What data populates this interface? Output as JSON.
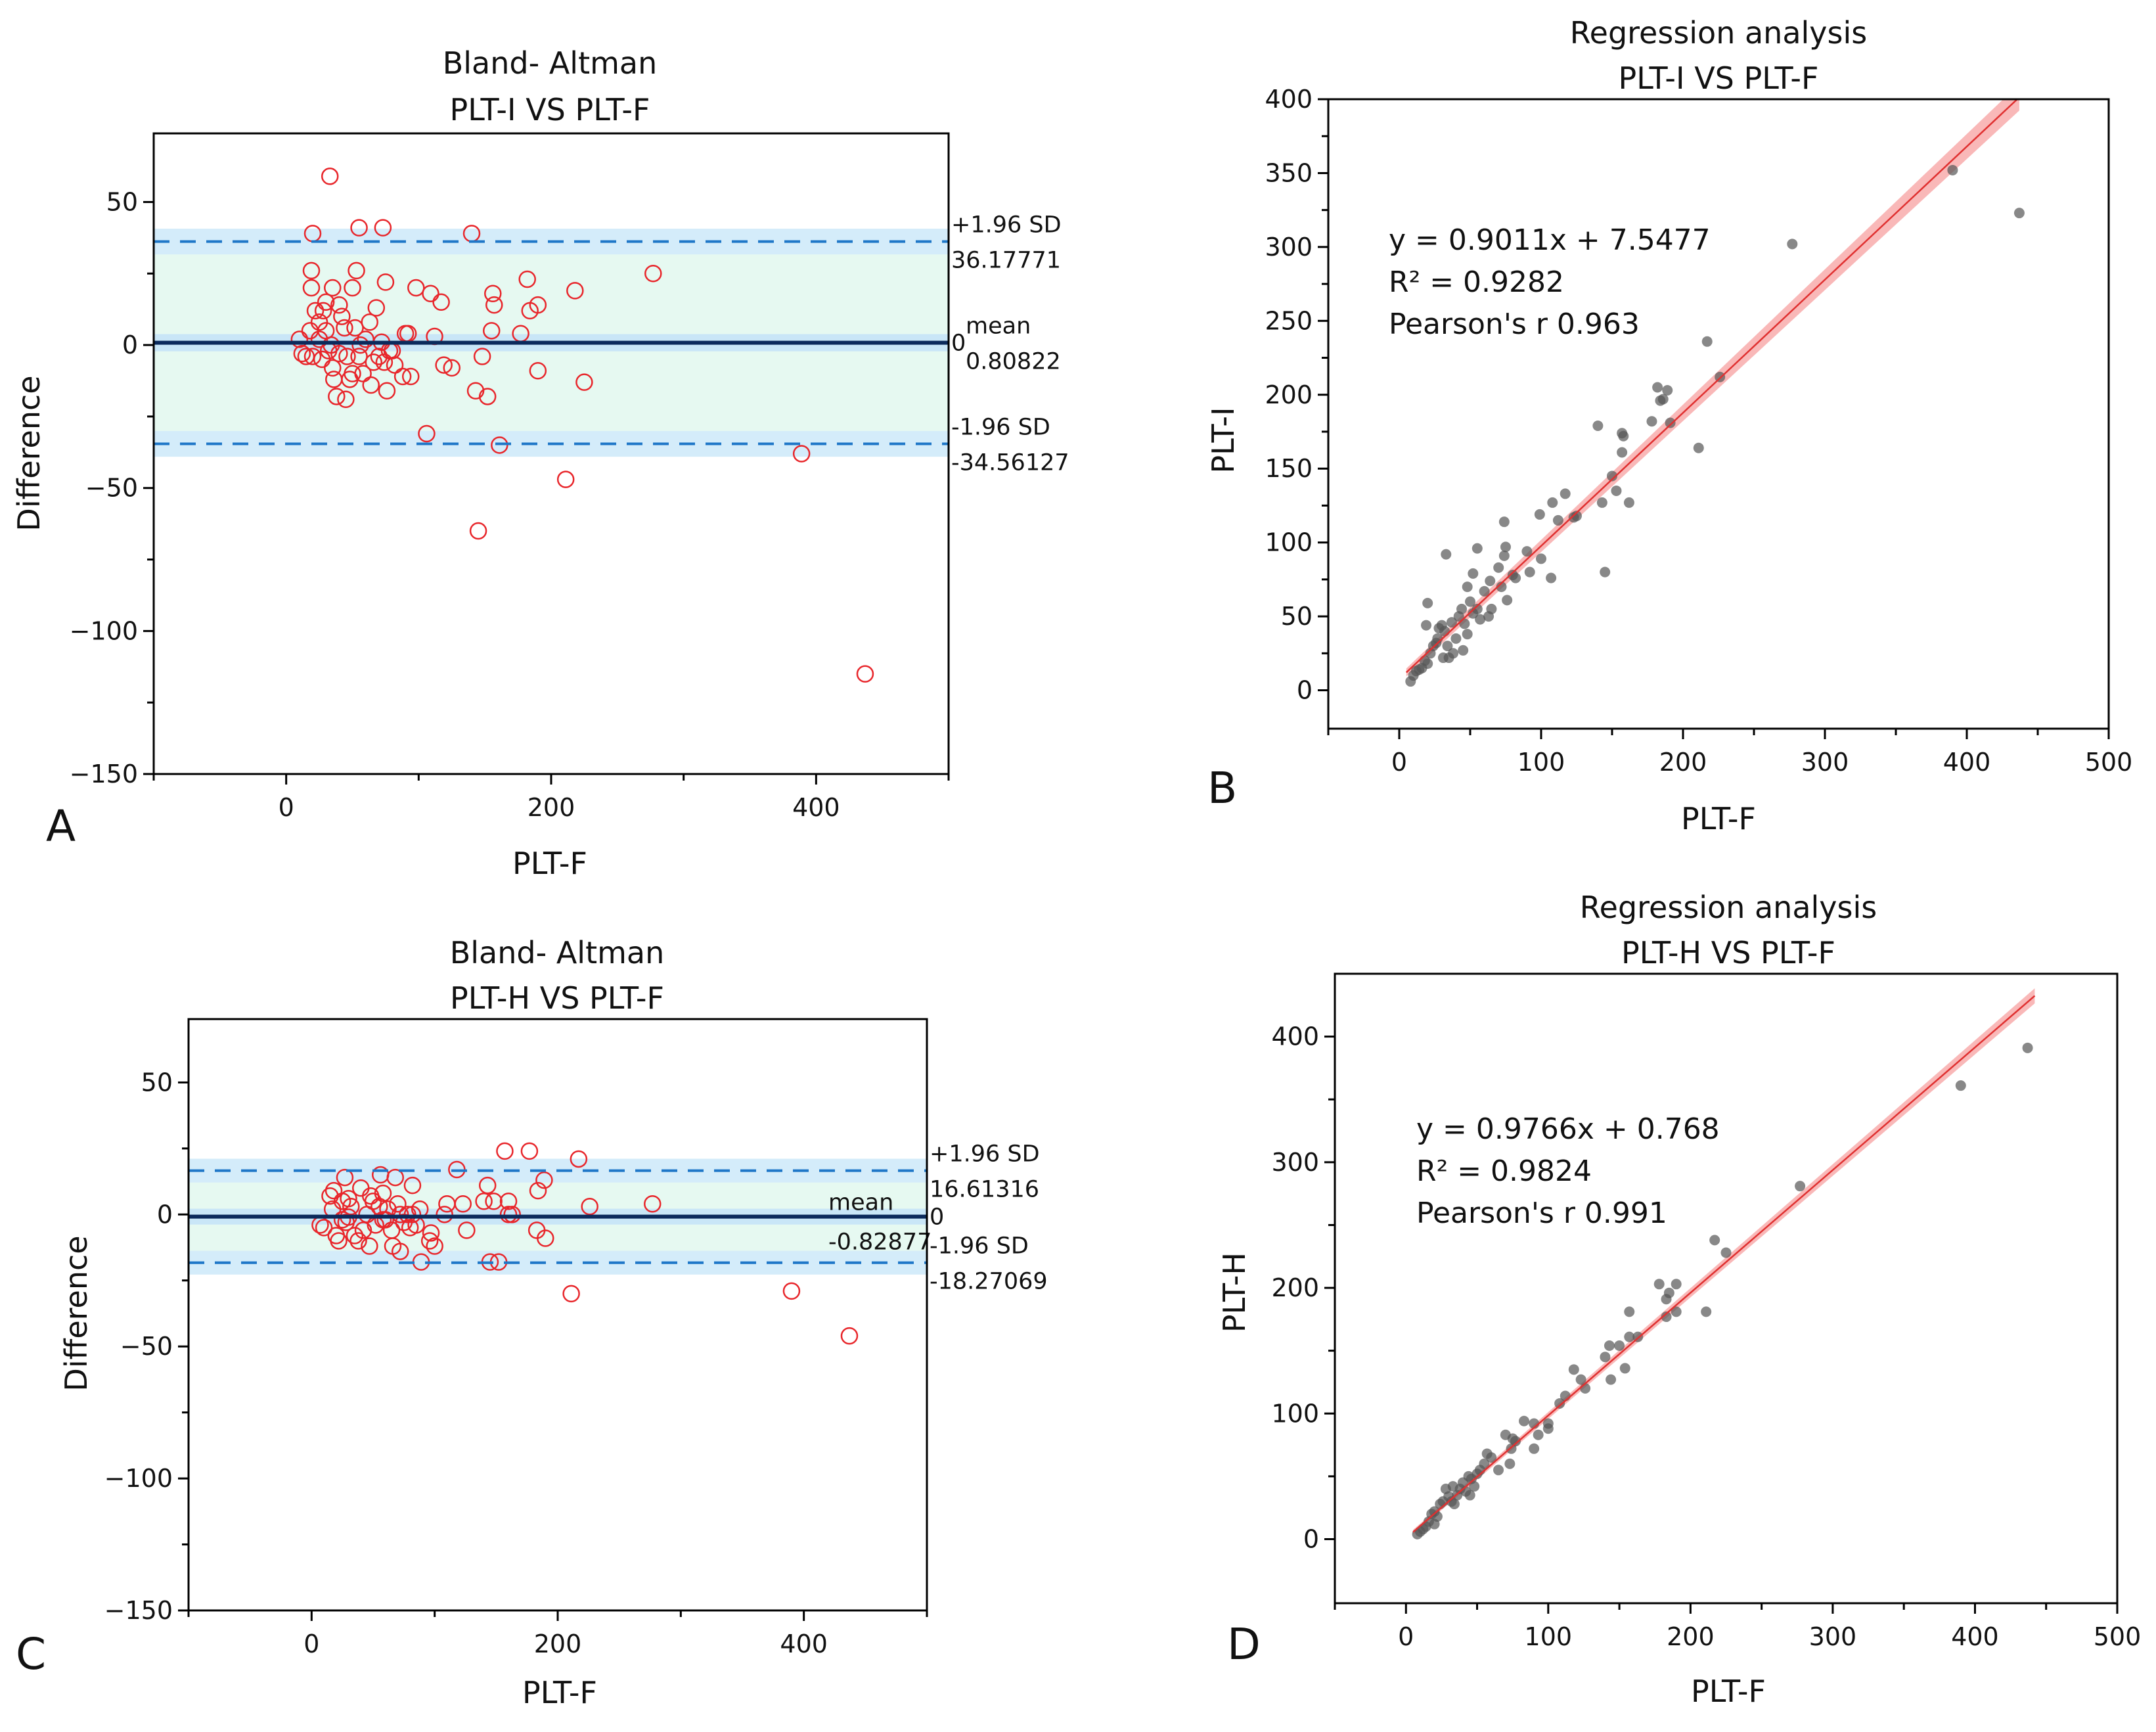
{
  "chart_data": [
    {
      "panel": "A",
      "type": "scatter",
      "subtype": "bland-altman",
      "title": [
        "Bland- Altman",
        "PLT-I VS PLT-F"
      ],
      "xlabel": "PLT-F",
      "ylabel": "Difference",
      "xlim": [
        -100,
        500
      ],
      "ylim": [
        -150,
        74
      ],
      "xticks": [
        0,
        200,
        400
      ],
      "xminor": [
        -100,
        100,
        300,
        500
      ],
      "yticks": [
        50,
        0,
        -50,
        -100,
        -150
      ],
      "yminor": [
        25,
        -25,
        -75,
        -125
      ],
      "mean": 0.80822,
      "upper_sd": 36.17771,
      "lower_sd": -34.56127,
      "side_labels": {
        "upper": "+1.96 SD",
        "upper_value": "36.17771",
        "mean": "mean",
        "mean_value": "0.80822",
        "zero": "0",
        "lower": "-1.96 SD",
        "lower_value": "-34.56127"
      },
      "marker_color": "#e8262b",
      "points": [
        [
          33,
          59
        ],
        [
          20,
          39
        ],
        [
          55,
          41
        ],
        [
          73,
          41
        ],
        [
          140,
          39
        ],
        [
          19,
          26
        ],
        [
          53,
          26
        ],
        [
          19,
          20
        ],
        [
          35,
          20
        ],
        [
          50,
          20
        ],
        [
          75,
          22
        ],
        [
          98,
          20
        ],
        [
          109,
          18
        ],
        [
          117,
          15
        ],
        [
          156,
          18
        ],
        [
          157,
          14
        ],
        [
          182,
          23
        ],
        [
          184,
          12
        ],
        [
          190,
          14
        ],
        [
          218,
          19
        ],
        [
          277,
          25
        ],
        [
          155,
          5
        ],
        [
          177,
          4
        ],
        [
          112,
          3
        ],
        [
          90,
          4
        ],
        [
          148,
          -4
        ],
        [
          119,
          -7
        ],
        [
          125,
          -8
        ],
        [
          190,
          -9
        ],
        [
          225,
          -13
        ],
        [
          143,
          -16
        ],
        [
          152,
          -18
        ],
        [
          106,
          -31
        ],
        [
          161,
          -35
        ],
        [
          211,
          -47
        ],
        [
          145,
          -65
        ],
        [
          389,
          -38
        ],
        [
          437,
          -115
        ],
        [
          10,
          2
        ],
        [
          12,
          -3
        ],
        [
          15,
          -4
        ],
        [
          20,
          -4
        ],
        [
          25,
          2
        ],
        [
          28,
          12
        ],
        [
          30,
          5
        ],
        [
          32,
          -2
        ],
        [
          35,
          -8
        ],
        [
          36,
          -12
        ],
        [
          38,
          -18
        ],
        [
          42,
          10
        ],
        [
          44,
          6
        ],
        [
          46,
          -4
        ],
        [
          45,
          -19
        ],
        [
          48,
          -12
        ],
        [
          50,
          -10
        ],
        [
          52,
          6
        ],
        [
          55,
          -4
        ],
        [
          58,
          -10
        ],
        [
          60,
          2
        ],
        [
          63,
          8
        ],
        [
          64,
          -14
        ],
        [
          68,
          13
        ],
        [
          70,
          -4
        ],
        [
          72,
          1
        ],
        [
          76,
          -16
        ],
        [
          78,
          -2
        ],
        [
          82,
          -7
        ],
        [
          88,
          -11
        ],
        [
          94,
          -11
        ],
        [
          25,
          8
        ],
        [
          22,
          12
        ],
        [
          30,
          15
        ],
        [
          40,
          14
        ],
        [
          18,
          5
        ],
        [
          27,
          -5
        ],
        [
          34,
          0
        ],
        [
          40,
          -3
        ],
        [
          56,
          0
        ],
        [
          66,
          -6
        ],
        [
          74,
          -6
        ],
        [
          80,
          -2
        ],
        [
          92,
          4
        ]
      ]
    },
    {
      "panel": "B",
      "type": "scatter",
      "subtype": "regression",
      "title": [
        "Regression analysis",
        "PLT-I VS PLT-F"
      ],
      "xlabel": "PLT-F",
      "ylabel": "PLT-I",
      "xlim": [
        -50,
        500
      ],
      "ylim": [
        -26,
        400
      ],
      "xticks": [
        0,
        100,
        200,
        300,
        400,
        500
      ],
      "xminor": [
        -50,
        50,
        150,
        250,
        350,
        450
      ],
      "yticks": [
        0,
        50,
        100,
        150,
        200,
        250,
        300,
        350,
        400
      ],
      "yminor": [
        25,
        75,
        125,
        175,
        225,
        275,
        325,
        375
      ],
      "fit": {
        "slope": 0.9011,
        "intercept": 7.5477,
        "x_range": [
          5,
          437
        ]
      },
      "annotations": [
        "y = 0.9011x + 7.5477",
        "R² = 0.9282",
        "Pearson's r  0.963"
      ],
      "marker_color": "#555555",
      "fit_color": "#e03030",
      "band_color": "#f7a0a0",
      "points": [
        [
          437,
          323
        ],
        [
          390,
          352
        ],
        [
          277,
          302
        ],
        [
          217,
          236
        ],
        [
          226,
          212
        ],
        [
          182,
          205
        ],
        [
          189,
          203
        ],
        [
          184,
          196
        ],
        [
          186,
          197
        ],
        [
          178,
          182
        ],
        [
          191,
          181
        ],
        [
          140,
          179
        ],
        [
          157,
          174
        ],
        [
          158,
          172
        ],
        [
          157,
          161
        ],
        [
          211,
          164
        ],
        [
          150,
          145
        ],
        [
          153,
          135
        ],
        [
          143,
          127
        ],
        [
          162,
          127
        ],
        [
          108,
          127
        ],
        [
          117,
          133
        ],
        [
          123,
          117
        ],
        [
          125,
          118
        ],
        [
          112,
          115
        ],
        [
          99,
          119
        ],
        [
          74,
          114
        ],
        [
          100,
          89
        ],
        [
          107,
          76
        ],
        [
          145,
          80
        ],
        [
          90,
          94
        ],
        [
          92,
          80
        ],
        [
          33,
          92
        ],
        [
          55,
          96
        ],
        [
          75,
          97
        ],
        [
          74,
          91
        ],
        [
          70,
          83
        ],
        [
          52,
          79
        ],
        [
          64,
          74
        ],
        [
          72,
          70
        ],
        [
          76,
          61
        ],
        [
          80,
          78
        ],
        [
          82,
          76
        ],
        [
          20,
          59
        ],
        [
          48,
          70
        ],
        [
          60,
          67
        ],
        [
          65,
          55
        ],
        [
          63,
          50
        ],
        [
          8,
          6
        ],
        [
          10,
          10
        ],
        [
          12,
          13
        ],
        [
          14,
          14
        ],
        [
          16,
          15
        ],
        [
          18,
          20
        ],
        [
          20,
          18
        ],
        [
          22,
          25
        ],
        [
          24,
          30
        ],
        [
          26,
          32
        ],
        [
          28,
          42
        ],
        [
          30,
          44
        ],
        [
          32,
          40
        ],
        [
          34,
          30
        ],
        [
          35,
          22
        ],
        [
          38,
          25
        ],
        [
          40,
          35
        ],
        [
          42,
          50
        ],
        [
          44,
          55
        ],
        [
          46,
          45
        ],
        [
          48,
          38
        ],
        [
          50,
          60
        ],
        [
          52,
          52
        ],
        [
          55,
          55
        ],
        [
          57,
          48
        ],
        [
          45,
          27
        ],
        [
          37,
          46
        ],
        [
          19,
          44
        ],
        [
          27,
          35
        ],
        [
          31,
          22
        ]
      ]
    },
    {
      "panel": "C",
      "type": "scatter",
      "subtype": "bland-altman",
      "title": [
        "Bland- Altman",
        "PLT-H VS PLT-F"
      ],
      "xlabel": "PLT-F",
      "ylabel": "Difference",
      "xlim": [
        -100,
        500
      ],
      "ylim": [
        -150,
        74
      ],
      "xticks": [
        0,
        200,
        400
      ],
      "xminor": [
        -100,
        100,
        300,
        500
      ],
      "yticks": [
        50,
        0,
        -50,
        -100,
        -150
      ],
      "yminor": [
        25,
        -25,
        -75,
        -125
      ],
      "mean": -0.82877,
      "upper_sd": 16.61316,
      "lower_sd": -18.27069,
      "side_labels": {
        "upper": "+1.96 SD",
        "upper_value": "16.61316",
        "mean": "mean",
        "mean_value": "-0.82877",
        "zero": "0",
        "lower": "-1.96 SD",
        "lower_value": "-18.27069"
      },
      "marker_color": "#e8262b",
      "points": [
        [
          157,
          24
        ],
        [
          177,
          24
        ],
        [
          217,
          21
        ],
        [
          118,
          17
        ],
        [
          56,
          15
        ],
        [
          27,
          14
        ],
        [
          68,
          14
        ],
        [
          82,
          11
        ],
        [
          143,
          11
        ],
        [
          189,
          13
        ],
        [
          184,
          9
        ],
        [
          160,
          5
        ],
        [
          148,
          5
        ],
        [
          140,
          5
        ],
        [
          110,
          4
        ],
        [
          123,
          4
        ],
        [
          226,
          3
        ],
        [
          277,
          4
        ],
        [
          88,
          2
        ],
        [
          108,
          0
        ],
        [
          160,
          0
        ],
        [
          163,
          0
        ],
        [
          126,
          -6
        ],
        [
          183,
          -6
        ],
        [
          190,
          -9
        ],
        [
          97,
          -7
        ],
        [
          96,
          -10
        ],
        [
          100,
          -12
        ],
        [
          89,
          -18
        ],
        [
          145,
          -18
        ],
        [
          152,
          -18
        ],
        [
          211,
          -30
        ],
        [
          390,
          -29
        ],
        [
          437,
          -46
        ],
        [
          7,
          -4
        ],
        [
          10,
          -5
        ],
        [
          15,
          7
        ],
        [
          17,
          2
        ],
        [
          20,
          -8
        ],
        [
          22,
          -10
        ],
        [
          25,
          5
        ],
        [
          28,
          -3
        ],
        [
          30,
          -1
        ],
        [
          32,
          3
        ],
        [
          35,
          -8
        ],
        [
          38,
          -10
        ],
        [
          40,
          10
        ],
        [
          42,
          -6
        ],
        [
          45,
          0
        ],
        [
          47,
          -12
        ],
        [
          50,
          5
        ],
        [
          52,
          -4
        ],
        [
          55,
          3
        ],
        [
          58,
          8
        ],
        [
          60,
          -2
        ],
        [
          62,
          2
        ],
        [
          65,
          -6
        ],
        [
          66,
          -12
        ],
        [
          70,
          4
        ],
        [
          72,
          -14
        ],
        [
          75,
          -3
        ],
        [
          78,
          0
        ],
        [
          80,
          -5
        ],
        [
          85,
          -4
        ],
        [
          18,
          9
        ],
        [
          25,
          -2
        ],
        [
          30,
          6
        ],
        [
          48,
          7
        ],
        [
          58,
          -2
        ],
        [
          72,
          0
        ],
        [
          82,
          0
        ]
      ]
    },
    {
      "panel": "D",
      "type": "scatter",
      "subtype": "regression",
      "title": [
        "Regression analysis",
        "PLT-H VS PLT-F"
      ],
      "xlabel": "PLT-F",
      "ylabel": "PLT-H",
      "xlim": [
        -50,
        500
      ],
      "ylim": [
        -51,
        450
      ],
      "xticks": [
        0,
        100,
        200,
        300,
        400,
        500
      ],
      "xminor": [
        -50,
        50,
        150,
        250,
        350,
        450
      ],
      "yticks": [
        0,
        100,
        200,
        300,
        400
      ],
      "yminor": [
        50,
        150,
        250,
        350
      ],
      "fit": {
        "slope": 0.9766,
        "intercept": 0.768,
        "x_range": [
          5,
          442
        ]
      },
      "annotations": [
        "y = 0.9766x + 0.768",
        "R² = 0.9824",
        "Pearson's r  0.991"
      ],
      "marker_color": "#555555",
      "fit_color": "#e03030",
      "band_color": "#f7a0a0",
      "points": [
        [
          437,
          391
        ],
        [
          390,
          361
        ],
        [
          277,
          281
        ],
        [
          217,
          238
        ],
        [
          225,
          228
        ],
        [
          178,
          203
        ],
        [
          190,
          203
        ],
        [
          185,
          196
        ],
        [
          183,
          191
        ],
        [
          190,
          181
        ],
        [
          211,
          181
        ],
        [
          157,
          181
        ],
        [
          183,
          177
        ],
        [
          157,
          161
        ],
        [
          163,
          161
        ],
        [
          143,
          154
        ],
        [
          150,
          154
        ],
        [
          140,
          145
        ],
        [
          154,
          136
        ],
        [
          144,
          127
        ],
        [
          118,
          135
        ],
        [
          123,
          127
        ],
        [
          126,
          120
        ],
        [
          112,
          114
        ],
        [
          108,
          108
        ],
        [
          100,
          92
        ],
        [
          100,
          88
        ],
        [
          90,
          92
        ],
        [
          93,
          83
        ],
        [
          90,
          72
        ],
        [
          83,
          94
        ],
        [
          70,
          83
        ],
        [
          75,
          80
        ],
        [
          77,
          78
        ],
        [
          74,
          72
        ],
        [
          73,
          60
        ],
        [
          65,
          55
        ],
        [
          60,
          65
        ],
        [
          57,
          68
        ],
        [
          55,
          60
        ],
        [
          52,
          55
        ],
        [
          8,
          4
        ],
        [
          10,
          6
        ],
        [
          12,
          8
        ],
        [
          14,
          10
        ],
        [
          16,
          14
        ],
        [
          18,
          20
        ],
        [
          20,
          22
        ],
        [
          22,
          18
        ],
        [
          24,
          28
        ],
        [
          26,
          30
        ],
        [
          28,
          40
        ],
        [
          30,
          34
        ],
        [
          32,
          30
        ],
        [
          34,
          28
        ],
        [
          36,
          35
        ],
        [
          38,
          40
        ],
        [
          40,
          45
        ],
        [
          42,
          38
        ],
        [
          44,
          50
        ],
        [
          46,
          48
        ],
        [
          48,
          42
        ],
        [
          50,
          52
        ],
        [
          20,
          12
        ],
        [
          33,
          42
        ],
        [
          45,
          35
        ]
      ]
    }
  ]
}
